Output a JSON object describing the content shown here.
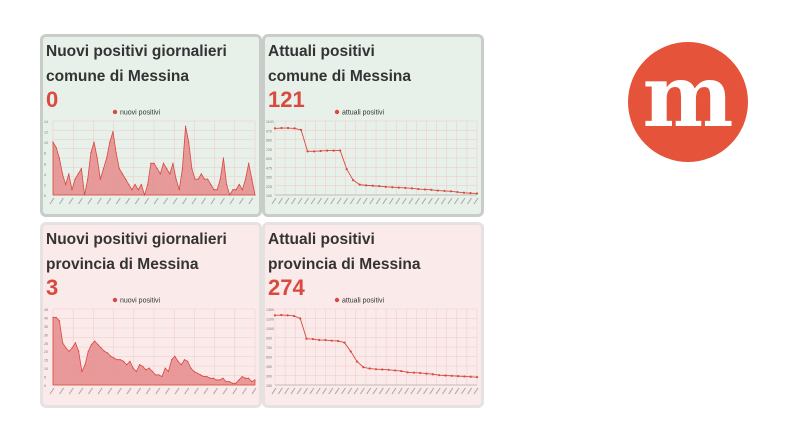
{
  "panels": [
    {
      "title_line1": "Nuovi positivi giornalieri",
      "title_line2": "comune di Messina",
      "value": "0"
    },
    {
      "title_line1": "Attuali positivi",
      "title_line2": "comune di Messina",
      "value": "121"
    },
    {
      "title_line1": "Nuovi positivi giornalieri",
      "title_line2": "provincia di Messina",
      "value": "3"
    },
    {
      "title_line1": "Attuali positivi",
      "title_line2": "provincia di Messina",
      "value": "274"
    }
  ],
  "logo": {
    "letter": "m",
    "background": "#e4533a"
  },
  "colors": {
    "series": "#d9493f",
    "area": "#e58b8b"
  },
  "chart_data": [
    {
      "type": "area",
      "legend": "nuovi positivi",
      "legend_position": "top-center",
      "grid": true,
      "ylim": [
        0,
        14
      ],
      "yticks": [
        0,
        2,
        4,
        6,
        8,
        10,
        12,
        14
      ],
      "values": [
        10,
        9,
        7,
        4,
        2,
        4,
        1,
        3,
        4,
        5,
        0,
        3,
        8,
        10,
        7,
        3,
        5,
        7,
        10,
        12,
        8,
        5,
        4,
        3,
        2,
        1,
        2,
        1,
        2,
        0,
        2,
        6,
        6,
        5,
        4,
        6,
        5,
        4,
        6,
        3,
        1,
        5,
        13,
        10,
        5,
        3,
        3,
        4,
        3,
        3,
        2,
        1,
        1,
        3,
        7,
        2,
        0,
        1,
        1,
        2,
        1,
        3,
        6,
        3,
        0
      ]
    },
    {
      "type": "line",
      "legend": "attuali positivi",
      "legend_position": "top-center",
      "grid": true,
      "ylim": [
        100,
        1100
      ],
      "values": [
        1000,
        1005,
        1005,
        1000,
        980,
        690,
        690,
        695,
        700,
        700,
        702,
        450,
        300,
        240,
        230,
        225,
        220,
        210,
        205,
        200,
        195,
        190,
        180,
        175,
        170,
        160,
        155,
        150,
        140,
        130,
        125,
        121
      ]
    },
    {
      "type": "area",
      "legend": "nuovi positivi",
      "legend_position": "top-center",
      "grid": true,
      "ylim": [
        0,
        45
      ],
      "yticks": [
        0,
        5,
        10,
        15,
        20,
        25,
        30,
        35,
        40,
        45
      ],
      "values": [
        40,
        40,
        38,
        25,
        22,
        20,
        22,
        25,
        20,
        8,
        12,
        20,
        24,
        26,
        24,
        22,
        20,
        19,
        17,
        16,
        15,
        15,
        14,
        12,
        14,
        10,
        8,
        12,
        11,
        9,
        10,
        8,
        6,
        6,
        5,
        10,
        8,
        15,
        17,
        14,
        12,
        15,
        14,
        10,
        8,
        7,
        6,
        5,
        5,
        4,
        4,
        3,
        3,
        4,
        2,
        2,
        1,
        1,
        3,
        5,
        4,
        4,
        2,
        3
      ]
    },
    {
      "type": "line",
      "legend": "attuali positivi",
      "legend_position": "top-center",
      "grid": true,
      "ylim": [
        150,
        1350
      ],
      "values": [
        1250,
        1255,
        1250,
        1240,
        1200,
        880,
        875,
        860,
        860,
        850,
        845,
        820,
        680,
        520,
        430,
        410,
        400,
        395,
        390,
        380,
        370,
        350,
        345,
        340,
        330,
        320,
        305,
        300,
        295,
        290,
        285,
        280,
        274
      ]
    }
  ]
}
